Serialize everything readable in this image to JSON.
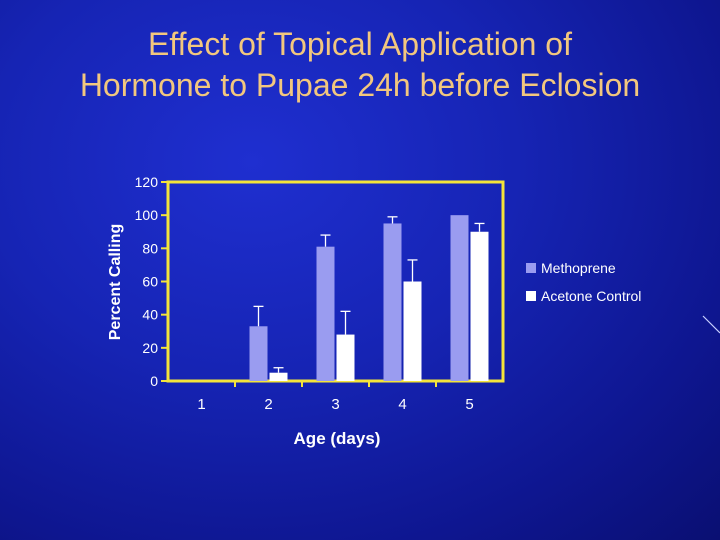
{
  "slide": {
    "title_line1": "Effect of Topical Application of",
    "title_line2": "Hormone to Pupae 24h before Eclosion"
  },
  "colors": {
    "background": "#1624b4",
    "title": "#f2c77e",
    "axis": "#f4e43a",
    "methoprene": "#9a9cf0",
    "acetone_control": "#ffffff",
    "text": "#ffffff"
  },
  "chart_data": {
    "type": "bar",
    "title": "",
    "xlabel": "Age (days)",
    "ylabel": "Percent Calling",
    "ylim": [
      0,
      120
    ],
    "yticks": [
      0,
      20,
      40,
      60,
      80,
      100,
      120
    ],
    "categories": [
      "1",
      "2",
      "3",
      "4",
      "5"
    ],
    "series": [
      {
        "name": "Methoprene",
        "values": [
          0,
          33,
          81,
          95,
          100
        ],
        "error": [
          0,
          12,
          7,
          4,
          0
        ]
      },
      {
        "name": "Acetone Control",
        "values": [
          0,
          5,
          28,
          60,
          90
        ],
        "error": [
          0,
          3,
          14,
          13,
          5
        ]
      }
    ],
    "legend_position": "right",
    "error_bars": true,
    "grid": false
  }
}
